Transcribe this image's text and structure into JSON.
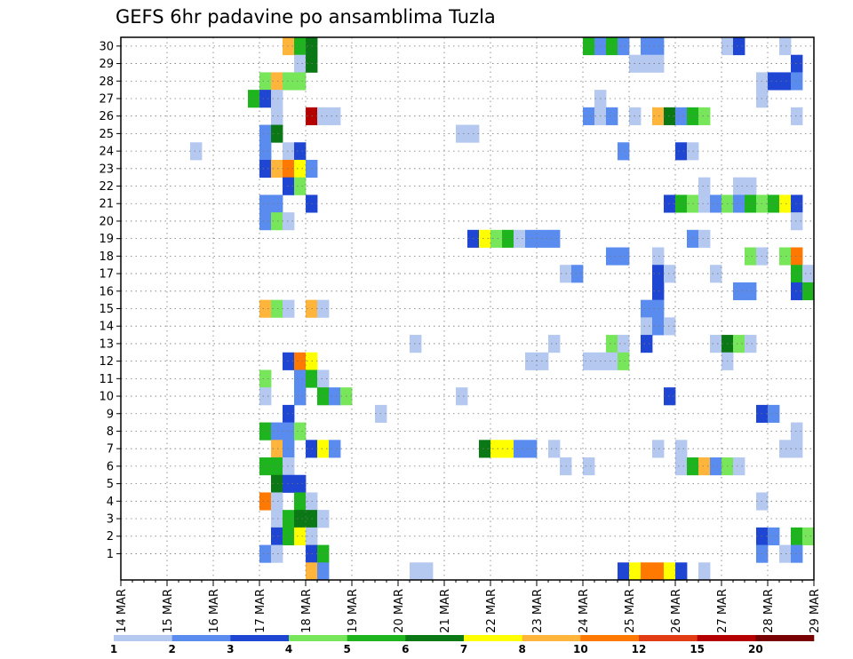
{
  "chart_data": {
    "type": "heatmap",
    "title": "GEFS 6hr padavine po ansamblima Tuzla",
    "x_tick_labels": [
      "14 MAR",
      "15 MAR",
      "16 MAR",
      "17 MAR",
      "18 MAR",
      "19 MAR",
      "20 MAR",
      "21 MAR",
      "22 MAR",
      "23 MAR",
      "24 MAR",
      "25 MAR",
      "26 MAR",
      "27 MAR",
      "28 MAR",
      "29 MAR"
    ],
    "y_tick_labels": [
      "1",
      "2",
      "3",
      "4",
      "5",
      "6",
      "7",
      "8",
      "9",
      "10",
      "11",
      "12",
      "13",
      "14",
      "15",
      "16",
      "17",
      "18",
      "19",
      "20",
      "21",
      "22",
      "23",
      "24",
      "25",
      "26",
      "27",
      "28",
      "29",
      "30"
    ],
    "xlim": [
      0,
      60
    ],
    "ylim": [
      0,
      30
    ],
    "time_step": "6hr",
    "grid": true,
    "legend": {
      "placement": "bottom",
      "labels": [
        "1",
        "2",
        "3",
        "4",
        "5",
        "6",
        "7",
        "8",
        "10",
        "12",
        "15",
        "20"
      ],
      "colors": [
        "#b4c8f0",
        "#5a8cf0",
        "#1e46d2",
        "#78e65a",
        "#1eb41e",
        "#0a7814",
        "#ffff00",
        "#ffb43c",
        "#ff7800",
        "#e13c14",
        "#b40000",
        "#780000"
      ]
    },
    "cells": [
      {
        "r": 30,
        "c": [
          [
            14,
            "#ffb43c"
          ],
          [
            15,
            "#1eb41e"
          ],
          [
            16,
            "#0a7814"
          ],
          [
            40,
            "#1eb41e"
          ],
          [
            41,
            "#5a8cf0"
          ],
          [
            42,
            "#1eb41e"
          ],
          [
            43,
            "#5a8cf0"
          ],
          [
            45,
            "#5a8cf0"
          ],
          [
            46,
            "#5a8cf0"
          ],
          [
            52,
            "#b4c8f0"
          ],
          [
            53,
            "#1e46d2"
          ],
          [
            57,
            "#b4c8f0"
          ]
        ]
      },
      {
        "r": 29,
        "c": [
          [
            15,
            "#b4c8f0"
          ],
          [
            16,
            "#0a7814"
          ],
          [
            44,
            "#b4c8f0"
          ],
          [
            45,
            "#b4c8f0"
          ],
          [
            46,
            "#b4c8f0"
          ],
          [
            58,
            "#1e46d2"
          ]
        ]
      },
      {
        "r": 28,
        "c": [
          [
            12,
            "#78e65a"
          ],
          [
            13,
            "#ffb43c"
          ],
          [
            14,
            "#78e65a"
          ],
          [
            15,
            "#78e65a"
          ],
          [
            55,
            "#b4c8f0"
          ],
          [
            56,
            "#1e46d2"
          ],
          [
            57,
            "#1e46d2"
          ],
          [
            58,
            "#5a8cf0"
          ]
        ]
      },
      {
        "r": 27,
        "c": [
          [
            11,
            "#1eb41e"
          ],
          [
            12,
            "#1e46d2"
          ],
          [
            13,
            "#b4c8f0"
          ],
          [
            41,
            "#b4c8f0"
          ],
          [
            55,
            "#b4c8f0"
          ]
        ]
      },
      {
        "r": 26,
        "c": [
          [
            13,
            "#b4c8f0"
          ],
          [
            16,
            "#b40000"
          ],
          [
            17,
            "#b4c8f0"
          ],
          [
            18,
            "#b4c8f0"
          ],
          [
            40,
            "#5a8cf0"
          ],
          [
            41,
            "#b4c8f0"
          ],
          [
            42,
            "#5a8cf0"
          ],
          [
            44,
            "#b4c8f0"
          ],
          [
            46,
            "#ffb43c"
          ],
          [
            47,
            "#0a7814"
          ],
          [
            48,
            "#5a8cf0"
          ],
          [
            49,
            "#1eb41e"
          ],
          [
            50,
            "#78e65a"
          ],
          [
            58,
            "#b4c8f0"
          ]
        ]
      },
      {
        "r": 25,
        "c": [
          [
            12,
            "#5a8cf0"
          ],
          [
            13,
            "#0a7814"
          ],
          [
            29,
            "#b4c8f0"
          ],
          [
            30,
            "#b4c8f0"
          ]
        ]
      },
      {
        "r": 24,
        "c": [
          [
            6,
            "#b4c8f0"
          ],
          [
            12,
            "#5a8cf0"
          ],
          [
            14,
            "#b4c8f0"
          ],
          [
            15,
            "#1e46d2"
          ],
          [
            43,
            "#5a8cf0"
          ],
          [
            48,
            "#1e46d2"
          ],
          [
            49,
            "#b4c8f0"
          ]
        ]
      },
      {
        "r": 23,
        "c": [
          [
            12,
            "#1e46d2"
          ],
          [
            13,
            "#ffb43c"
          ],
          [
            14,
            "#ff7800"
          ],
          [
            15,
            "#ffff00"
          ],
          [
            16,
            "#5a8cf0"
          ]
        ]
      },
      {
        "r": 22,
        "c": [
          [
            14,
            "#1e46d2"
          ],
          [
            15,
            "#78e65a"
          ],
          [
            50,
            "#b4c8f0"
          ],
          [
            53,
            "#b4c8f0"
          ],
          [
            54,
            "#b4c8f0"
          ]
        ]
      },
      {
        "r": 21,
        "c": [
          [
            12,
            "#5a8cf0"
          ],
          [
            13,
            "#5a8cf0"
          ],
          [
            16,
            "#1e46d2"
          ],
          [
            47,
            "#1e46d2"
          ],
          [
            48,
            "#1eb41e"
          ],
          [
            49,
            "#78e65a"
          ],
          [
            50,
            "#b4c8f0"
          ],
          [
            51,
            "#5a8cf0"
          ],
          [
            52,
            "#78e65a"
          ],
          [
            53,
            "#5a8cf0"
          ],
          [
            54,
            "#1eb41e"
          ],
          [
            55,
            "#78e65a"
          ],
          [
            56,
            "#1eb41e"
          ],
          [
            57,
            "#ffff00"
          ],
          [
            58,
            "#1e46d2"
          ]
        ]
      },
      {
        "r": 20,
        "c": [
          [
            12,
            "#5a8cf0"
          ],
          [
            13,
            "#78e65a"
          ],
          [
            14,
            "#b4c8f0"
          ],
          [
            58,
            "#b4c8f0"
          ]
        ]
      },
      {
        "r": 19,
        "c": [
          [
            30,
            "#1e46d2"
          ],
          [
            31,
            "#ffff00"
          ],
          [
            32,
            "#78e65a"
          ],
          [
            33,
            "#1eb41e"
          ],
          [
            34,
            "#b4c8f0"
          ],
          [
            35,
            "#5a8cf0"
          ],
          [
            36,
            "#5a8cf0"
          ],
          [
            37,
            "#5a8cf0"
          ],
          [
            49,
            "#5a8cf0"
          ],
          [
            50,
            "#b4c8f0"
          ]
        ]
      },
      {
        "r": 18,
        "c": [
          [
            42,
            "#5a8cf0"
          ],
          [
            43,
            "#5a8cf0"
          ],
          [
            46,
            "#b4c8f0"
          ],
          [
            54,
            "#78e65a"
          ],
          [
            55,
            "#b4c8f0"
          ],
          [
            57,
            "#78e65a"
          ],
          [
            58,
            "#ff7800"
          ]
        ]
      },
      {
        "r": 17,
        "c": [
          [
            38,
            "#b4c8f0"
          ],
          [
            39,
            "#5a8cf0"
          ],
          [
            46,
            "#1e46d2"
          ],
          [
            47,
            "#b4c8f0"
          ],
          [
            51,
            "#b4c8f0"
          ],
          [
            58,
            "#1eb41e"
          ],
          [
            59,
            "#b4c8f0"
          ]
        ]
      },
      {
        "r": 16,
        "c": [
          [
            46,
            "#1e46d2"
          ],
          [
            53,
            "#5a8cf0"
          ],
          [
            54,
            "#5a8cf0"
          ],
          [
            58,
            "#1e46d2"
          ],
          [
            59,
            "#1eb41e"
          ]
        ]
      },
      {
        "r": 15,
        "c": [
          [
            12,
            "#ffb43c"
          ],
          [
            13,
            "#78e65a"
          ],
          [
            14,
            "#b4c8f0"
          ],
          [
            16,
            "#ffb43c"
          ],
          [
            17,
            "#b4c8f0"
          ],
          [
            45,
            "#5a8cf0"
          ],
          [
            46,
            "#5a8cf0"
          ]
        ]
      },
      {
        "r": 14,
        "c": [
          [
            45,
            "#b4c8f0"
          ],
          [
            46,
            "#5a8cf0"
          ],
          [
            47,
            "#b4c8f0"
          ]
        ]
      },
      {
        "r": 13,
        "c": [
          [
            25,
            "#b4c8f0"
          ],
          [
            37,
            "#b4c8f0"
          ],
          [
            42,
            "#78e65a"
          ],
          [
            43,
            "#b4c8f0"
          ],
          [
            45,
            "#1e46d2"
          ],
          [
            51,
            "#b4c8f0"
          ],
          [
            52,
            "#0a7814"
          ],
          [
            53,
            "#78e65a"
          ],
          [
            54,
            "#b4c8f0"
          ]
        ]
      },
      {
        "r": 12,
        "c": [
          [
            14,
            "#1e46d2"
          ],
          [
            15,
            "#ff7800"
          ],
          [
            16,
            "#ffff00"
          ],
          [
            35,
            "#b4c8f0"
          ],
          [
            36,
            "#b4c8f0"
          ],
          [
            40,
            "#b4c8f0"
          ],
          [
            41,
            "#b4c8f0"
          ],
          [
            42,
            "#b4c8f0"
          ],
          [
            43,
            "#78e65a"
          ],
          [
            52,
            "#b4c8f0"
          ]
        ]
      },
      {
        "r": 11,
        "c": [
          [
            12,
            "#78e65a"
          ],
          [
            15,
            "#5a8cf0"
          ],
          [
            16,
            "#1eb41e"
          ],
          [
            17,
            "#b4c8f0"
          ]
        ]
      },
      {
        "r": 10,
        "c": [
          [
            12,
            "#b4c8f0"
          ],
          [
            15,
            "#5a8cf0"
          ],
          [
            17,
            "#1eb41e"
          ],
          [
            18,
            "#5a8cf0"
          ],
          [
            19,
            "#78e65a"
          ],
          [
            29,
            "#b4c8f0"
          ],
          [
            47,
            "#1e46d2"
          ]
        ]
      },
      {
        "r": 9,
        "c": [
          [
            14,
            "#1e46d2"
          ],
          [
            22,
            "#b4c8f0"
          ],
          [
            55,
            "#1e46d2"
          ],
          [
            56,
            "#5a8cf0"
          ]
        ]
      },
      {
        "r": 8,
        "c": [
          [
            12,
            "#1eb41e"
          ],
          [
            13,
            "#5a8cf0"
          ],
          [
            14,
            "#5a8cf0"
          ],
          [
            15,
            "#78e65a"
          ],
          [
            58,
            "#b4c8f0"
          ]
        ]
      },
      {
        "r": 7,
        "c": [
          [
            13,
            "#ffb43c"
          ],
          [
            14,
            "#5a8cf0"
          ],
          [
            16,
            "#1e46d2"
          ],
          [
            17,
            "#ffff00"
          ],
          [
            18,
            "#5a8cf0"
          ],
          [
            31,
            "#0a7814"
          ],
          [
            32,
            "#ffff00"
          ],
          [
            33,
            "#ffff00"
          ],
          [
            34,
            "#5a8cf0"
          ],
          [
            35,
            "#5a8cf0"
          ],
          [
            37,
            "#b4c8f0"
          ],
          [
            46,
            "#b4c8f0"
          ],
          [
            48,
            "#b4c8f0"
          ],
          [
            57,
            "#b4c8f0"
          ],
          [
            58,
            "#b4c8f0"
          ]
        ]
      },
      {
        "r": 6,
        "c": [
          [
            12,
            "#1eb41e"
          ],
          [
            13,
            "#1eb41e"
          ],
          [
            14,
            "#b4c8f0"
          ],
          [
            38,
            "#b4c8f0"
          ],
          [
            40,
            "#b4c8f0"
          ],
          [
            48,
            "#b4c8f0"
          ],
          [
            49,
            "#1eb41e"
          ],
          [
            50,
            "#ffb43c"
          ],
          [
            51,
            "#5a8cf0"
          ],
          [
            52,
            "#78e65a"
          ],
          [
            53,
            "#b4c8f0"
          ]
        ]
      },
      {
        "r": 5,
        "c": [
          [
            13,
            "#0a7814"
          ],
          [
            14,
            "#1e46d2"
          ],
          [
            15,
            "#1e46d2"
          ]
        ]
      },
      {
        "r": 4,
        "c": [
          [
            12,
            "#ff7800"
          ],
          [
            13,
            "#b4c8f0"
          ],
          [
            15,
            "#1eb41e"
          ],
          [
            16,
            "#b4c8f0"
          ],
          [
            55,
            "#b4c8f0"
          ]
        ]
      },
      {
        "r": 3,
        "c": [
          [
            13,
            "#b4c8f0"
          ],
          [
            14,
            "#1eb41e"
          ],
          [
            15,
            "#0a7814"
          ],
          [
            16,
            "#0a7814"
          ],
          [
            17,
            "#b4c8f0"
          ]
        ]
      },
      {
        "r": 2,
        "c": [
          [
            13,
            "#1e46d2"
          ],
          [
            14,
            "#1eb41e"
          ],
          [
            15,
            "#ffff00"
          ],
          [
            16,
            "#b4c8f0"
          ],
          [
            55,
            "#1e46d2"
          ],
          [
            56,
            "#5a8cf0"
          ],
          [
            58,
            "#1eb41e"
          ],
          [
            59,
            "#78e65a"
          ]
        ]
      },
      {
        "r": 1,
        "c": [
          [
            12,
            "#5a8cf0"
          ],
          [
            13,
            "#b4c8f0"
          ],
          [
            16,
            "#1e46d2"
          ],
          [
            17,
            "#1eb41e"
          ],
          [
            55,
            "#5a8cf0"
          ],
          [
            57,
            "#b4c8f0"
          ],
          [
            58,
            "#5a8cf0"
          ]
        ]
      },
      {
        "r": 0,
        "c": [
          [
            16,
            "#ffb43c"
          ],
          [
            17,
            "#5a8cf0"
          ],
          [
            25,
            "#b4c8f0"
          ],
          [
            26,
            "#b4c8f0"
          ],
          [
            43,
            "#1e46d2"
          ],
          [
            44,
            "#ffff00"
          ],
          [
            45,
            "#ff7800"
          ],
          [
            46,
            "#ff7800"
          ],
          [
            47,
            "#ffff00"
          ],
          [
            48,
            "#1e46d2"
          ],
          [
            50,
            "#b4c8f0"
          ]
        ]
      }
    ]
  }
}
